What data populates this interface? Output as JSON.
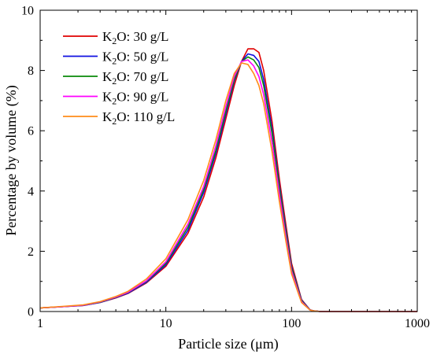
{
  "chart_data": {
    "type": "line",
    "xlabel": "Particle size (μm)",
    "ylabel": "Percentage by volume (%)",
    "xscale": "log",
    "xlim": [
      1,
      1000
    ],
    "ylim": [
      0,
      10
    ],
    "xticks": [
      1,
      10,
      100,
      1000
    ],
    "xtick_labels": [
      "1",
      "10",
      "100",
      "1000"
    ],
    "yticks": [
      0,
      2,
      4,
      6,
      8,
      10
    ],
    "ytick_labels": [
      "0",
      "2",
      "4",
      "6",
      "8",
      "10"
    ],
    "grid": false,
    "legend_position": "top-left",
    "series": [
      {
        "name": "K₂O: 30 g/L",
        "legend": {
          "prefix": "K",
          "sub": "2",
          "suffix": "O: 30 g/L"
        },
        "color": "#e00000",
        "x": [
          1,
          1.5,
          2.2,
          3,
          4,
          5,
          7,
          10,
          15,
          20,
          25,
          30,
          35,
          40,
          45,
          50,
          55,
          60,
          70,
          80,
          90,
          100,
          120,
          140,
          150,
          170,
          200,
          300,
          500,
          1000
        ],
        "y": [
          0.12,
          0.16,
          0.2,
          0.3,
          0.45,
          0.6,
          0.95,
          1.5,
          2.6,
          3.8,
          5.1,
          6.4,
          7.5,
          8.3,
          8.72,
          8.72,
          8.6,
          8.0,
          6.3,
          4.4,
          2.9,
          1.6,
          0.4,
          0.06,
          0.02,
          0,
          0,
          0,
          0,
          0
        ]
      },
      {
        "name": "K₂O: 50 g/L",
        "legend": {
          "prefix": "K",
          "sub": "2",
          "suffix": "O: 50 g/L"
        },
        "color": "#1010e0",
        "x": [
          1,
          1.5,
          2.2,
          3,
          4,
          5,
          7,
          10,
          15,
          20,
          25,
          30,
          35,
          40,
          45,
          50,
          55,
          60,
          70,
          80,
          90,
          100,
          120,
          140,
          150,
          170,
          200,
          300,
          500,
          1000
        ],
        "y": [
          0.12,
          0.16,
          0.2,
          0.3,
          0.46,
          0.61,
          0.97,
          1.55,
          2.7,
          3.95,
          5.25,
          6.55,
          7.65,
          8.3,
          8.55,
          8.5,
          8.3,
          7.7,
          6.05,
          4.2,
          2.75,
          1.5,
          0.38,
          0.06,
          0.02,
          0,
          0,
          0,
          0,
          0
        ]
      },
      {
        "name": "K₂O: 70 g/L",
        "legend": {
          "prefix": "K",
          "sub": "2",
          "suffix": "O: 70 g/L"
        },
        "color": "#0a8a0a",
        "x": [
          1,
          1.5,
          2.2,
          3,
          4,
          5,
          7,
          10,
          15,
          20,
          25,
          30,
          35,
          40,
          45,
          50,
          55,
          60,
          70,
          80,
          90,
          100,
          120,
          140,
          150,
          170,
          200,
          300,
          500,
          1000
        ],
        "y": [
          0.12,
          0.16,
          0.21,
          0.31,
          0.47,
          0.63,
          1.0,
          1.6,
          2.8,
          4.05,
          5.35,
          6.65,
          7.7,
          8.3,
          8.45,
          8.35,
          8.1,
          7.5,
          5.9,
          4.1,
          2.65,
          1.45,
          0.36,
          0.05,
          0.02,
          0,
          0,
          0,
          0,
          0
        ]
      },
      {
        "name": "K₂O: 90 g/L",
        "legend": {
          "prefix": "K",
          "sub": "2",
          "suffix": "O: 90 g/L"
        },
        "color": "#ff00ff",
        "x": [
          1,
          1.5,
          2.2,
          3,
          4,
          5,
          7,
          10,
          15,
          20,
          25,
          30,
          35,
          40,
          45,
          50,
          55,
          60,
          70,
          80,
          90,
          100,
          120,
          140,
          150,
          170,
          200,
          300,
          500,
          1000
        ],
        "y": [
          0.12,
          0.16,
          0.21,
          0.32,
          0.48,
          0.64,
          1.02,
          1.65,
          2.9,
          4.15,
          5.5,
          6.8,
          7.8,
          8.3,
          8.35,
          8.15,
          7.8,
          7.2,
          5.6,
          3.9,
          2.5,
          1.35,
          0.33,
          0.05,
          0.02,
          0,
          0,
          0,
          0,
          0
        ]
      },
      {
        "name": "K₂O: 110 g/L",
        "legend": {
          "prefix": "K",
          "sub": "2",
          "suffix": "O: 110 g/L"
        },
        "color": "#ff8c1a",
        "x": [
          1,
          1.5,
          2.2,
          3,
          4,
          5,
          7,
          10,
          15,
          20,
          25,
          30,
          35,
          40,
          45,
          50,
          55,
          60,
          70,
          80,
          90,
          100,
          120,
          140,
          150,
          170,
          200,
          300,
          500,
          1000
        ],
        "y": [
          0.12,
          0.17,
          0.22,
          0.33,
          0.5,
          0.67,
          1.08,
          1.75,
          3.05,
          4.35,
          5.7,
          7.0,
          7.9,
          8.25,
          8.2,
          7.9,
          7.5,
          6.9,
          5.3,
          3.65,
          2.35,
          1.25,
          0.3,
          0.05,
          0.02,
          0,
          0,
          0,
          0,
          0
        ]
      }
    ]
  }
}
